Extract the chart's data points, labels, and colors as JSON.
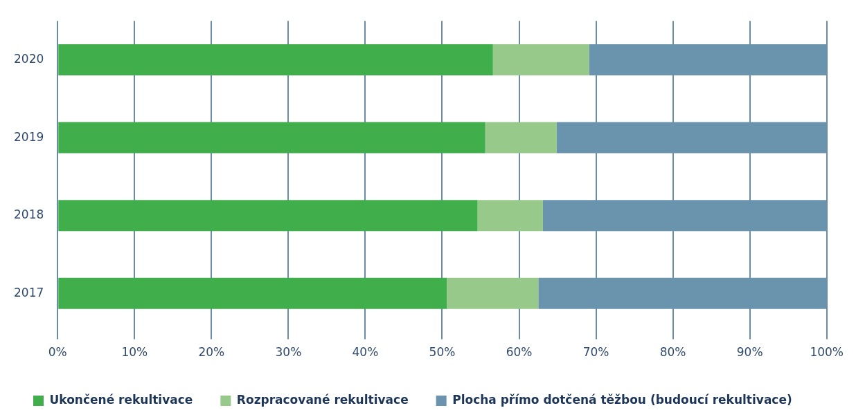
{
  "chart_data": {
    "type": "bar",
    "orientation": "horizontal",
    "stacked": true,
    "categories": [
      "2020",
      "2019",
      "2018",
      "2017"
    ],
    "series": [
      {
        "name": "Ukončené rekultivace",
        "color": "#40ae4a",
        "values": [
          56.6,
          55.6,
          54.6,
          50.6
        ]
      },
      {
        "name": "Rozpracované rekultivace",
        "color": "#97c98a",
        "values": [
          12.5,
          9.3,
          8.5,
          11.9
        ]
      },
      {
        "name": "Plocha přímo dotčená těžbou (budoucí rekultivace)",
        "color": "#6a93ad",
        "values": [
          30.9,
          35.1,
          36.9,
          37.5
        ]
      }
    ],
    "xlim": [
      0,
      100
    ],
    "xticks": [
      {
        "value": 0,
        "label": "0%"
      },
      {
        "value": 10,
        "label": "10%"
      },
      {
        "value": 20,
        "label": "20%"
      },
      {
        "value": 30,
        "label": "30%"
      },
      {
        "value": 40,
        "label": "40%"
      },
      {
        "value": 50,
        "label": "50%"
      },
      {
        "value": 60,
        "label": "60%"
      },
      {
        "value": 70,
        "label": "70%"
      },
      {
        "value": 80,
        "label": "80%"
      },
      {
        "value": 90,
        "label": "90%"
      },
      {
        "value": 100,
        "label": "100%"
      }
    ],
    "grid": "x",
    "legend": "bottom left"
  }
}
